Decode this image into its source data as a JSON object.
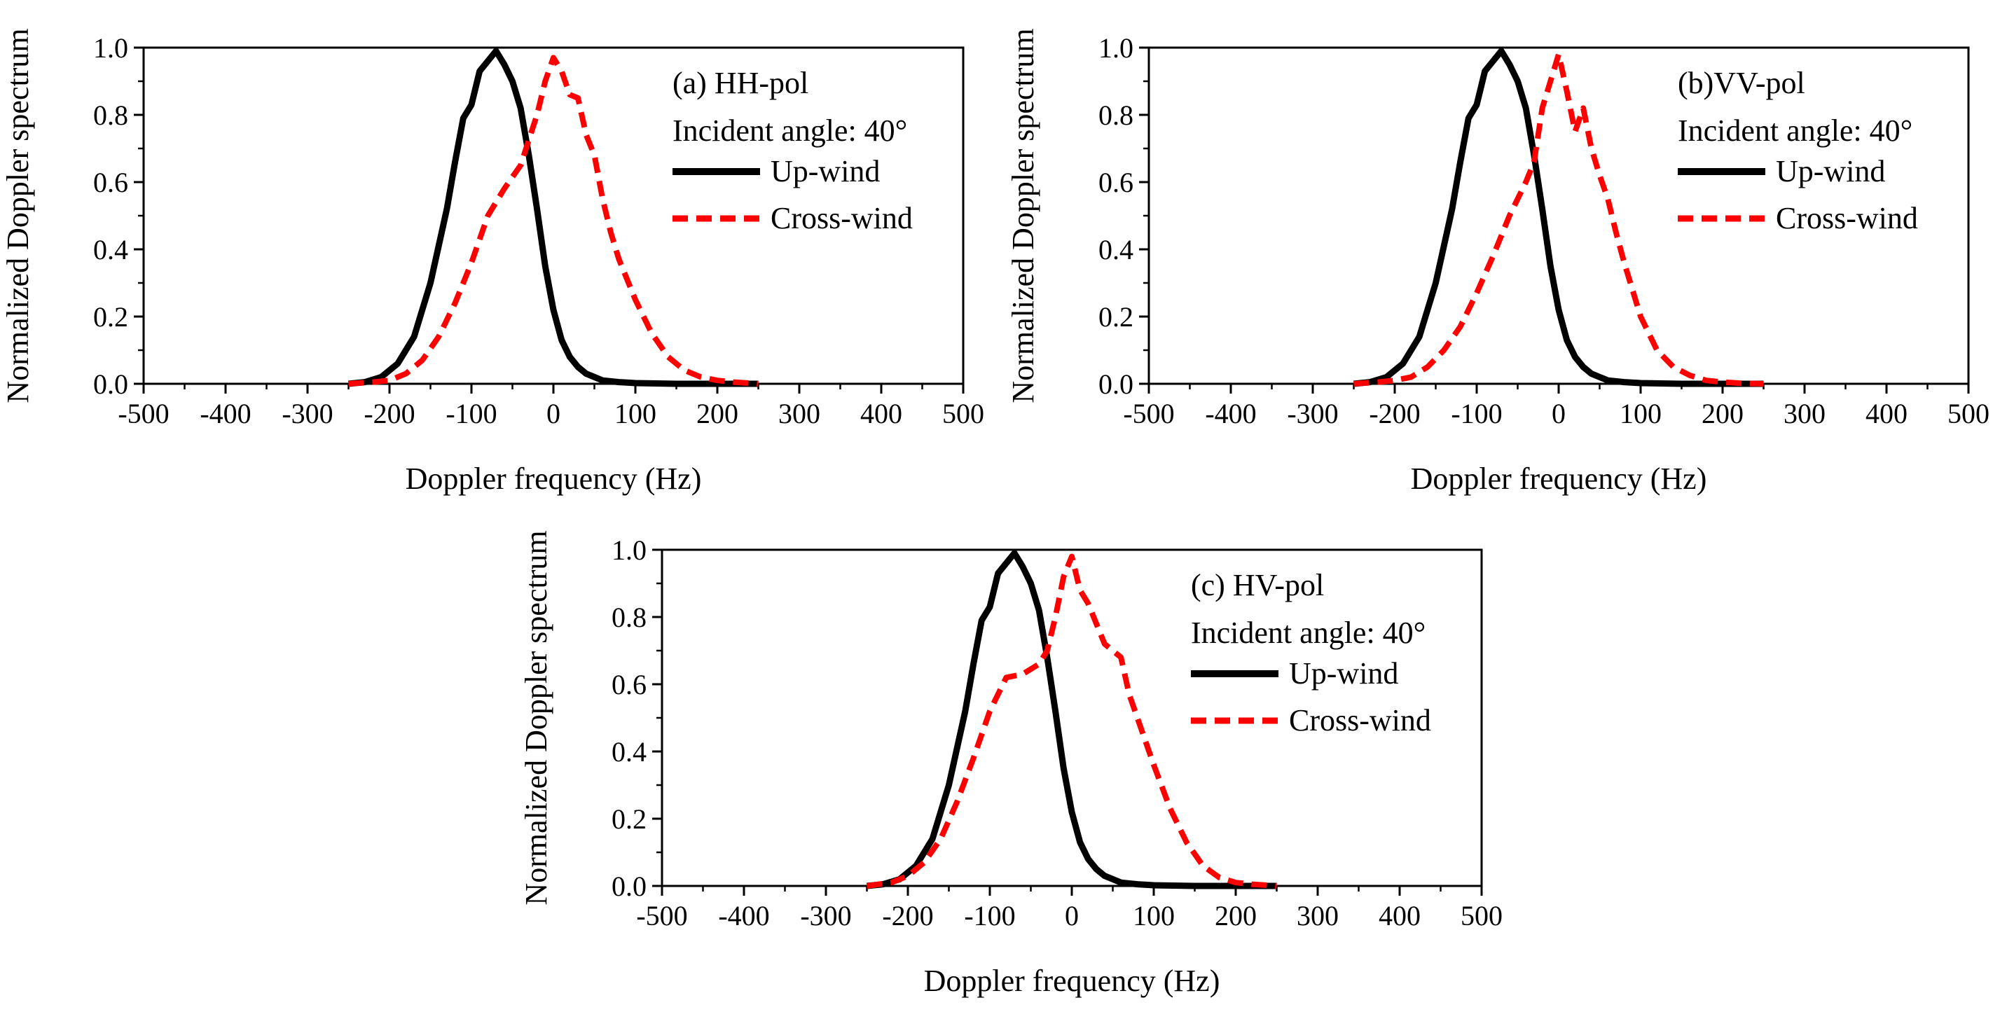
{
  "figure": {
    "background": "#ffffff"
  },
  "chart_data": [
    {
      "id": "a",
      "type": "line",
      "panel_label": "(a) HH-pol",
      "annotation": "Incident angle: 40°",
      "xlabel": "Doppler frequency (Hz)",
      "ylabel": "Normalized Doppler spectrum",
      "xlim": [
        -500,
        500
      ],
      "ylim": [
        0,
        1.0
      ],
      "xticks": [
        -500,
        -400,
        -300,
        -200,
        -100,
        0,
        100,
        200,
        300,
        400,
        500
      ],
      "yticks": [
        0.0,
        0.2,
        0.4,
        0.6,
        0.8,
        1.0
      ],
      "ytick_labels": [
        "0.0",
        "0.2",
        "0.4",
        "0.6",
        "0.8",
        "1.0"
      ],
      "legend_position": "top-right",
      "series": [
        {
          "name": "Up-wind",
          "color": "#000000",
          "style": "solid",
          "x": [
            -250,
            -230,
            -210,
            -190,
            -170,
            -150,
            -130,
            -120,
            -110,
            -100,
            -90,
            -80,
            -70,
            -60,
            -50,
            -40,
            -30,
            -20,
            -10,
            0,
            10,
            20,
            30,
            40,
            60,
            80,
            100,
            150,
            200,
            250
          ],
          "y": [
            0.0,
            0.005,
            0.02,
            0.06,
            0.14,
            0.3,
            0.52,
            0.66,
            0.79,
            0.83,
            0.93,
            0.96,
            0.99,
            0.95,
            0.9,
            0.82,
            0.68,
            0.52,
            0.35,
            0.22,
            0.13,
            0.08,
            0.05,
            0.03,
            0.01,
            0.005,
            0.002,
            0.0,
            0.0,
            0.0
          ]
        },
        {
          "name": "Cross-wind",
          "color": "#ff0000",
          "style": "dashed",
          "x": [
            -250,
            -220,
            -200,
            -180,
            -160,
            -140,
            -120,
            -100,
            -80,
            -60,
            -40,
            -20,
            -10,
            0,
            10,
            20,
            30,
            40,
            50,
            60,
            70,
            80,
            90,
            100,
            120,
            140,
            160,
            180,
            200,
            220,
            250
          ],
          "y": [
            0.0,
            0.005,
            0.01,
            0.03,
            0.07,
            0.14,
            0.24,
            0.36,
            0.5,
            0.58,
            0.65,
            0.8,
            0.9,
            0.97,
            0.93,
            0.86,
            0.85,
            0.74,
            0.68,
            0.55,
            0.45,
            0.37,
            0.31,
            0.25,
            0.15,
            0.08,
            0.04,
            0.02,
            0.01,
            0.005,
            0.0
          ]
        }
      ]
    },
    {
      "id": "b",
      "type": "line",
      "panel_label": "(b)VV-pol",
      "annotation": "Incident angle: 40°",
      "xlabel": "Doppler frequency (Hz)",
      "ylabel": "Normalized Doppler spectrum",
      "xlim": [
        -500,
        500
      ],
      "ylim": [
        0,
        1.0
      ],
      "xticks": [
        -500,
        -400,
        -300,
        -200,
        -100,
        0,
        100,
        200,
        300,
        400,
        500
      ],
      "yticks": [
        0.0,
        0.2,
        0.4,
        0.6,
        0.8,
        1.0
      ],
      "ytick_labels": [
        "0.0",
        "0.2",
        "0.4",
        "0.6",
        "0.8",
        "1.0"
      ],
      "legend_position": "top-right",
      "series": [
        {
          "name": "Up-wind",
          "color": "#000000",
          "style": "solid",
          "x": [
            -250,
            -230,
            -210,
            -190,
            -170,
            -150,
            -130,
            -120,
            -110,
            -100,
            -90,
            -80,
            -70,
            -60,
            -50,
            -40,
            -30,
            -20,
            -10,
            0,
            10,
            20,
            30,
            40,
            60,
            80,
            100,
            150,
            200,
            250
          ],
          "y": [
            0.0,
            0.005,
            0.02,
            0.06,
            0.14,
            0.3,
            0.52,
            0.66,
            0.79,
            0.83,
            0.93,
            0.96,
            0.99,
            0.95,
            0.9,
            0.82,
            0.68,
            0.52,
            0.35,
            0.22,
            0.13,
            0.08,
            0.05,
            0.03,
            0.01,
            0.005,
            0.002,
            0.0,
            0.0,
            0.0
          ]
        },
        {
          "name": "Cross-wind",
          "color": "#ff0000",
          "style": "dashed",
          "x": [
            -250,
            -220,
            -200,
            -180,
            -160,
            -140,
            -120,
            -100,
            -80,
            -60,
            -40,
            -30,
            -20,
            -10,
            0,
            10,
            20,
            30,
            40,
            50,
            60,
            70,
            80,
            90,
            100,
            120,
            140,
            160,
            180,
            200,
            220,
            250
          ],
          "y": [
            0.0,
            0.005,
            0.01,
            0.02,
            0.05,
            0.1,
            0.17,
            0.27,
            0.38,
            0.5,
            0.6,
            0.66,
            0.82,
            0.9,
            0.98,
            0.87,
            0.75,
            0.82,
            0.7,
            0.62,
            0.55,
            0.45,
            0.36,
            0.28,
            0.2,
            0.1,
            0.05,
            0.025,
            0.01,
            0.005,
            0.002,
            0.0
          ]
        }
      ]
    },
    {
      "id": "c",
      "type": "line",
      "panel_label": "(c) HV-pol",
      "annotation": "Incident angle: 40°",
      "xlabel": "Doppler frequency (Hz)",
      "ylabel": "Normalized Doppler spectrum",
      "xlim": [
        -500,
        500
      ],
      "ylim": [
        0,
        1.0
      ],
      "xticks": [
        -500,
        -400,
        -300,
        -200,
        -100,
        0,
        100,
        200,
        300,
        400,
        500
      ],
      "yticks": [
        0.0,
        0.2,
        0.4,
        0.6,
        0.8,
        1.0
      ],
      "ytick_labels": [
        "0.0",
        "0.2",
        "0.4",
        "0.6",
        "0.8",
        "1.0"
      ],
      "legend_position": "top-right",
      "series": [
        {
          "name": "Up-wind",
          "color": "#000000",
          "style": "solid",
          "x": [
            -250,
            -230,
            -210,
            -190,
            -170,
            -150,
            -130,
            -120,
            -110,
            -100,
            -90,
            -80,
            -70,
            -60,
            -50,
            -40,
            -30,
            -20,
            -10,
            0,
            10,
            20,
            30,
            40,
            60,
            80,
            100,
            150,
            200,
            250
          ],
          "y": [
            0.0,
            0.005,
            0.02,
            0.06,
            0.14,
            0.3,
            0.52,
            0.66,
            0.79,
            0.83,
            0.93,
            0.96,
            0.99,
            0.95,
            0.9,
            0.82,
            0.68,
            0.52,
            0.35,
            0.22,
            0.13,
            0.08,
            0.05,
            0.03,
            0.01,
            0.005,
            0.002,
            0.0,
            0.0,
            0.0
          ]
        },
        {
          "name": "Cross-wind",
          "color": "#ff0000",
          "style": "dashed",
          "x": [
            -250,
            -220,
            -200,
            -180,
            -160,
            -140,
            -120,
            -100,
            -80,
            -60,
            -40,
            -30,
            -20,
            -10,
            0,
            10,
            20,
            30,
            40,
            50,
            60,
            70,
            80,
            90,
            100,
            120,
            140,
            160,
            180,
            200,
            220,
            250
          ],
          "y": [
            0.0,
            0.01,
            0.03,
            0.07,
            0.14,
            0.25,
            0.38,
            0.52,
            0.62,
            0.63,
            0.66,
            0.7,
            0.8,
            0.92,
            0.98,
            0.88,
            0.84,
            0.78,
            0.72,
            0.7,
            0.68,
            0.57,
            0.5,
            0.43,
            0.36,
            0.23,
            0.13,
            0.06,
            0.025,
            0.01,
            0.005,
            0.0
          ]
        }
      ]
    }
  ]
}
